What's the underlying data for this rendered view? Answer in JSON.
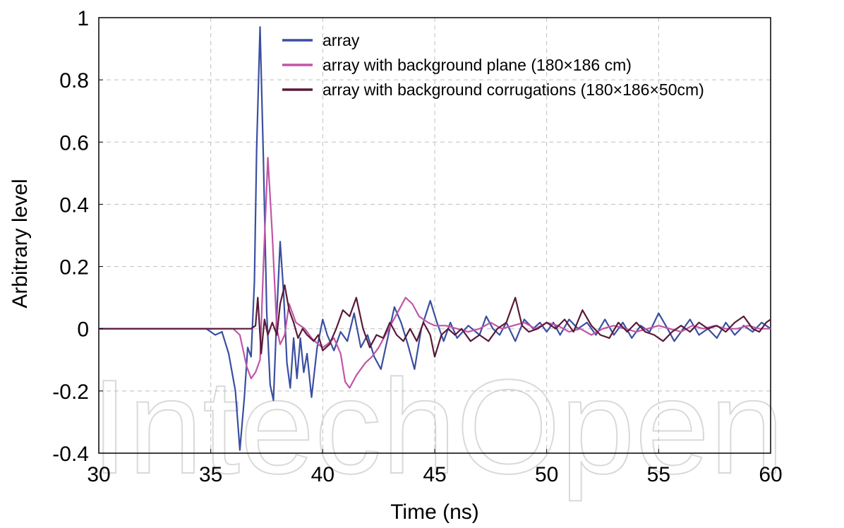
{
  "watermark": "IntechOpen",
  "chart_data": {
    "type": "line",
    "title": "",
    "xlabel": "Time (ns)",
    "ylabel": "Arbitrary level",
    "xlim": [
      30,
      60
    ],
    "ylim": [
      -0.4,
      1
    ],
    "xticks": [
      30,
      35,
      40,
      45,
      50,
      55,
      60
    ],
    "yticks": [
      -0.4,
      -0.2,
      0,
      0.2,
      0.4,
      0.6,
      0.8,
      1
    ],
    "xtick_labels": [
      "30",
      "35",
      "40",
      "45",
      "50",
      "55",
      "60"
    ],
    "ytick_labels": [
      "-0.4",
      "-0.2",
      "0",
      "0.2",
      "0.4",
      "0.6",
      "0.8",
      "1"
    ],
    "grid": true,
    "legend_position": "top-right",
    "series": [
      {
        "name": "array",
        "color": "#3a4fa0",
        "points": [
          [
            30,
            0
          ],
          [
            34.8,
            0
          ],
          [
            35,
            -0.01
          ],
          [
            35.2,
            -0.02
          ],
          [
            35.5,
            -0.01
          ],
          [
            35.8,
            -0.08
          ],
          [
            36.1,
            -0.2
          ],
          [
            36.3,
            -0.39
          ],
          [
            36.5,
            -0.22
          ],
          [
            36.65,
            -0.06
          ],
          [
            36.8,
            -0.09
          ],
          [
            36.95,
            0.15
          ],
          [
            37.05,
            0.58
          ],
          [
            37.2,
            0.97
          ],
          [
            37.35,
            0.55
          ],
          [
            37.5,
            0.05
          ],
          [
            37.65,
            -0.18
          ],
          [
            37.8,
            -0.23
          ],
          [
            37.95,
            0.05
          ],
          [
            38.1,
            0.28
          ],
          [
            38.25,
            0.12
          ],
          [
            38.4,
            -0.11
          ],
          [
            38.55,
            -0.19
          ],
          [
            38.7,
            -0.03
          ],
          [
            38.85,
            -0.16
          ],
          [
            39.0,
            -0.03
          ],
          [
            39.15,
            -0.14
          ],
          [
            39.3,
            -0.08
          ],
          [
            39.5,
            -0.22
          ],
          [
            39.75,
            -0.06
          ],
          [
            40.0,
            0.03
          ],
          [
            40.2,
            -0.02
          ],
          [
            40.5,
            -0.07
          ],
          [
            40.8,
            -0.01
          ],
          [
            41.1,
            -0.04
          ],
          [
            41.4,
            0.05
          ],
          [
            41.7,
            -0.06
          ],
          [
            42.0,
            -0.02
          ],
          [
            42.3,
            -0.09
          ],
          [
            42.6,
            -0.13
          ],
          [
            42.9,
            -0.03
          ],
          [
            43.2,
            0.07
          ],
          [
            43.5,
            0.02
          ],
          [
            43.8,
            -0.05
          ],
          [
            44.1,
            -0.13
          ],
          [
            44.4,
            0.0
          ],
          [
            44.8,
            0.09
          ],
          [
            45.1,
            0.02
          ],
          [
            45.4,
            -0.04
          ],
          [
            45.7,
            0.02
          ],
          [
            46.0,
            -0.03
          ],
          [
            46.5,
            0.01
          ],
          [
            47.0,
            -0.02
          ],
          [
            47.3,
            0.04
          ],
          [
            47.6,
            0.0
          ],
          [
            47.9,
            -0.02
          ],
          [
            48.2,
            0.02
          ],
          [
            48.6,
            -0.04
          ],
          [
            49.0,
            0.03
          ],
          [
            49.4,
            0.0
          ],
          [
            49.7,
            0.02
          ],
          [
            50.0,
            -0.01
          ],
          [
            50.3,
            0.02
          ],
          [
            50.6,
            -0.02
          ],
          [
            51.0,
            0.03
          ],
          [
            51.4,
            0.0
          ],
          [
            51.8,
            0.02
          ],
          [
            52.2,
            -0.02
          ],
          [
            52.6,
            0.03
          ],
          [
            53.0,
            -0.02
          ],
          [
            53.4,
            0.02
          ],
          [
            53.8,
            -0.03
          ],
          [
            54.2,
            0.01
          ],
          [
            54.6,
            -0.01
          ],
          [
            55.0,
            0.05
          ],
          [
            55.4,
            0.0
          ],
          [
            55.7,
            -0.04
          ],
          [
            56.0,
            -0.01
          ],
          [
            56.4,
            0.03
          ],
          [
            56.8,
            -0.02
          ],
          [
            57.2,
            0.0
          ],
          [
            57.6,
            -0.03
          ],
          [
            58.0,
            0.02
          ],
          [
            58.4,
            -0.02
          ],
          [
            58.8,
            0.01
          ],
          [
            59.2,
            -0.01
          ],
          [
            59.6,
            0.02
          ],
          [
            60,
            0.0
          ]
        ]
      },
      {
        "name": "array with background plane (180×186 cm)",
        "color": "#c255a6",
        "points": [
          [
            30,
            0
          ],
          [
            36.0,
            0
          ],
          [
            36.3,
            -0.02
          ],
          [
            36.6,
            -0.12
          ],
          [
            36.8,
            -0.16
          ],
          [
            37.0,
            -0.14
          ],
          [
            37.2,
            -0.1
          ],
          [
            37.35,
            0.2
          ],
          [
            37.55,
            0.55
          ],
          [
            37.75,
            0.3
          ],
          [
            37.95,
            0.0
          ],
          [
            38.1,
            -0.05
          ],
          [
            38.3,
            -0.02
          ],
          [
            38.5,
            0.08
          ],
          [
            38.8,
            0.02
          ],
          [
            39.2,
            0.0
          ],
          [
            39.5,
            -0.03
          ],
          [
            39.8,
            -0.05
          ],
          [
            40.0,
            -0.06
          ],
          [
            40.2,
            -0.05
          ],
          [
            40.5,
            -0.03
          ],
          [
            40.8,
            -0.08
          ],
          [
            41.0,
            -0.17
          ],
          [
            41.2,
            -0.19
          ],
          [
            41.5,
            -0.15
          ],
          [
            41.9,
            -0.11
          ],
          [
            42.2,
            -0.09
          ],
          [
            42.5,
            -0.06
          ],
          [
            42.8,
            -0.02
          ],
          [
            43.1,
            0.02
          ],
          [
            43.4,
            0.06
          ],
          [
            43.7,
            0.1
          ],
          [
            44.0,
            0.08
          ],
          [
            44.3,
            0.04
          ],
          [
            44.7,
            0.02
          ],
          [
            45.0,
            0.01
          ],
          [
            45.5,
            0.01
          ],
          [
            46.0,
            0.0
          ],
          [
            46.5,
            -0.01
          ],
          [
            47.0,
            0.0
          ],
          [
            47.5,
            0.02
          ],
          [
            48.0,
            0.0
          ],
          [
            48.5,
            0.01
          ],
          [
            49.0,
            0.02
          ],
          [
            49.5,
            0.0
          ],
          [
            50.0,
            0.02
          ],
          [
            50.5,
            0.01
          ],
          [
            51.0,
            -0.01
          ],
          [
            51.5,
            0.0
          ],
          [
            52.0,
            -0.02
          ],
          [
            52.5,
            0.0
          ],
          [
            53.0,
            0.01
          ],
          [
            53.5,
            0.0
          ],
          [
            54.0,
            -0.01
          ],
          [
            54.5,
            0.0
          ],
          [
            55.0,
            0.01
          ],
          [
            55.5,
            0.0
          ],
          [
            56.0,
            -0.01
          ],
          [
            56.5,
            0.01
          ],
          [
            57.0,
            0.0
          ],
          [
            57.5,
            0.01
          ],
          [
            58.0,
            0.0
          ],
          [
            58.5,
            0.0
          ],
          [
            59.0,
            0.01
          ],
          [
            59.5,
            0.0
          ],
          [
            60,
            0.0
          ]
        ]
      },
      {
        "name": "array with background corrugations (180×186×50cm)",
        "color": "#5a1a3a",
        "points": [
          [
            30,
            0
          ],
          [
            36.8,
            0
          ],
          [
            37.0,
            0.01
          ],
          [
            37.1,
            0.1
          ],
          [
            37.25,
            -0.08
          ],
          [
            37.4,
            0.03
          ],
          [
            37.55,
            -0.02
          ],
          [
            37.75,
            0.02
          ],
          [
            37.95,
            -0.02
          ],
          [
            38.1,
            0.08
          ],
          [
            38.3,
            0.14
          ],
          [
            38.5,
            0.06
          ],
          [
            38.7,
            0.02
          ],
          [
            38.9,
            -0.03
          ],
          [
            39.1,
            0.0
          ],
          [
            39.3,
            -0.02
          ],
          [
            39.6,
            -0.04
          ],
          [
            39.8,
            -0.02
          ],
          [
            40.0,
            -0.07
          ],
          [
            40.3,
            -0.05
          ],
          [
            40.6,
            0.0
          ],
          [
            40.9,
            0.06
          ],
          [
            41.2,
            0.04
          ],
          [
            41.5,
            0.1
          ],
          [
            41.8,
            0.0
          ],
          [
            42.1,
            -0.06
          ],
          [
            42.4,
            -0.02
          ],
          [
            42.7,
            -0.03
          ],
          [
            43.0,
            0.02
          ],
          [
            43.3,
            -0.02
          ],
          [
            43.6,
            -0.04
          ],
          [
            43.9,
            0.0
          ],
          [
            44.2,
            -0.04
          ],
          [
            44.5,
            0.02
          ],
          [
            44.8,
            -0.02
          ],
          [
            45.0,
            -0.09
          ],
          [
            45.3,
            -0.02
          ],
          [
            45.6,
            0.0
          ],
          [
            45.9,
            -0.02
          ],
          [
            46.2,
            0.0
          ],
          [
            46.6,
            -0.04
          ],
          [
            47.0,
            -0.02
          ],
          [
            47.4,
            -0.04
          ],
          [
            47.8,
            0.0
          ],
          [
            48.2,
            0.02
          ],
          [
            48.6,
            0.1
          ],
          [
            48.9,
            0.01
          ],
          [
            49.2,
            -0.01
          ],
          [
            49.6,
            0.0
          ],
          [
            50.0,
            0.02
          ],
          [
            50.4,
            0.0
          ],
          [
            50.8,
            0.03
          ],
          [
            51.2,
            -0.01
          ],
          [
            51.6,
            0.06
          ],
          [
            52.0,
            0.01
          ],
          [
            52.4,
            -0.02
          ],
          [
            52.8,
            -0.03
          ],
          [
            53.2,
            0.02
          ],
          [
            53.6,
            -0.01
          ],
          [
            54.0,
            0.02
          ],
          [
            54.4,
            -0.01
          ],
          [
            54.8,
            -0.02
          ],
          [
            55.2,
            -0.04
          ],
          [
            55.6,
            -0.01
          ],
          [
            56.0,
            0.01
          ],
          [
            56.4,
            -0.01
          ],
          [
            56.8,
            0.02
          ],
          [
            57.2,
            0.0
          ],
          [
            57.6,
            0.01
          ],
          [
            58.0,
            -0.01
          ],
          [
            58.4,
            0.02
          ],
          [
            58.8,
            0.04
          ],
          [
            59.2,
            0.0
          ],
          [
            59.5,
            -0.01
          ],
          [
            59.8,
            0.02
          ],
          [
            60,
            0.03
          ]
        ]
      }
    ]
  }
}
